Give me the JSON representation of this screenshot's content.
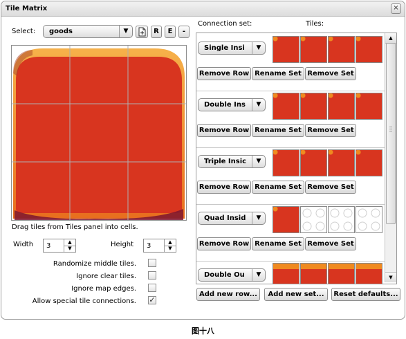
{
  "window": {
    "title": "Tile Matrix",
    "close_glyph": "×"
  },
  "left": {
    "select_label": "Select:",
    "select_value": "goods",
    "icon_buttons": [
      "R",
      "E",
      "-"
    ],
    "hint": "Drag tiles from Tiles panel into cells.",
    "width_label": "Width",
    "width_value": "3",
    "height_label": "Height",
    "height_value": "3",
    "options": [
      {
        "label": "Randomize middle tiles.",
        "checked": false
      },
      {
        "label": "Ignore clear tiles.",
        "checked": false
      },
      {
        "label": "Ignore map edges.",
        "checked": false
      },
      {
        "label": "Allow special tile connections.",
        "checked": true
      }
    ],
    "check_glyph": "✓"
  },
  "right": {
    "connection_header": "Connection set:",
    "tiles_header": "Tiles:",
    "rows": [
      {
        "set_name": "Single Insi",
        "tiles": [
          "full",
          "full",
          "full",
          "full"
        ]
      },
      {
        "set_name": "Double Ins",
        "tiles": [
          "full",
          "full",
          "full",
          "full"
        ]
      },
      {
        "set_name": "Triple Insic",
        "tiles": [
          "full",
          "full",
          "full",
          "full"
        ]
      },
      {
        "set_name": "Quad Insid",
        "tiles": [
          "full",
          "empty",
          "empty",
          "empty"
        ]
      },
      {
        "set_name": "Double Ou",
        "tiles": [
          "full",
          "full",
          "full",
          "full"
        ]
      }
    ],
    "row_buttons": {
      "remove_row": "Remove Row",
      "rename_set": "Rename Set",
      "remove_set": "Remove Set"
    },
    "bottom_buttons": {
      "add_row": "Add new row...",
      "add_set": "Add new set...",
      "reset": "Reset defaults..."
    }
  },
  "caption": "图十八",
  "colors": {
    "tile_red": "#d8351f",
    "tile_orange": "#f08a1f",
    "grid_line": "#b0b0b0"
  }
}
